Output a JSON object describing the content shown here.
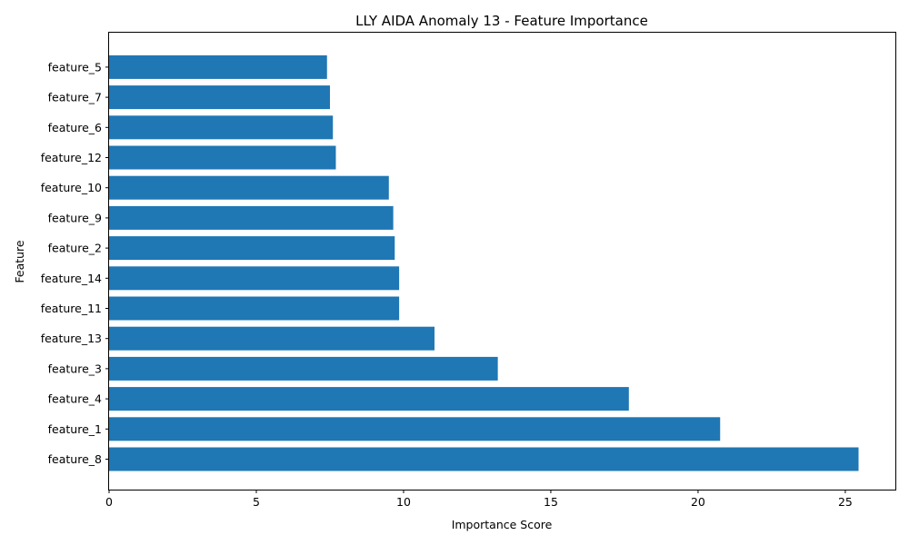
{
  "chart_data": {
    "type": "bar",
    "orientation": "horizontal",
    "title": "LLY AIDA Anomaly 13 - Feature Importance",
    "xlabel": "Importance Score",
    "ylabel": "Feature",
    "xlim": [
      0,
      26.7
    ],
    "xticks": [
      0,
      5,
      10,
      15,
      20,
      25
    ],
    "categories": [
      "feature_8",
      "feature_1",
      "feature_4",
      "feature_3",
      "feature_13",
      "feature_11",
      "feature_14",
      "feature_2",
      "feature_9",
      "feature_10",
      "feature_12",
      "feature_6",
      "feature_7",
      "feature_5"
    ],
    "values": [
      25.45,
      20.75,
      17.65,
      13.2,
      11.05,
      9.85,
      9.85,
      9.7,
      9.65,
      9.5,
      7.7,
      7.6,
      7.5,
      7.4
    ],
    "bar_color": "#1f77b4",
    "grid": false
  }
}
